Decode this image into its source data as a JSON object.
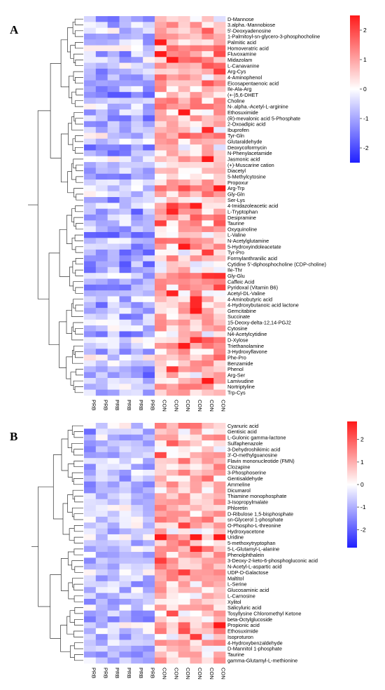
{
  "colors": {
    "low": "#2020ff",
    "mid": "#ffffff",
    "high": "#ff1a1a"
  },
  "chart_data": [
    {
      "type": "heatmap",
      "panel": "A",
      "columns": [
        "PRB",
        "PRB",
        "PRB",
        "PRB",
        "PRB",
        "PRB",
        "CON",
        "CON",
        "CON",
        "CON",
        "CON",
        "CON"
      ],
      "rows": [
        "D-Mannose",
        "3.alpha.-Mannobiose",
        "5'-Deoxyadenosine",
        "1-Palmitoyl-sn-glycero-3-phosphocholine",
        "Palmitic acid",
        "Homoveratric acid",
        "Fluvoxamine",
        "Midazolam",
        "L-Canavanine",
        "Arg-Cys",
        "4-Aminophenol",
        "Eicosapentaenoic acid",
        "Ile-Ala-Arg",
        "(+-)5,6-DHET",
        "Choline",
        "N-.alpha.-Acetyl-L-arginine",
        "Ethosuximide",
        "(R)-mevalonic acid 5-Phosphate",
        "2-Oxoadipic acid",
        "Ibuprofen",
        "Tyr-Gln",
        "Glutaraldehyde",
        "Deoxycoformycin",
        "N-Phenylacetamide",
        "Jasmonic acid",
        "(+)-Muscarine cation",
        "Diacetyl",
        "5-Methylcytosine",
        "Propoxur",
        "Arg-Trp",
        "Gly-Gln",
        "Ser-Lys",
        "4-Imidazoleacetic acid",
        "L-Tryptophan",
        "Desipramine",
        "Taurine",
        "Oxyquinoline",
        "L-Valine",
        "N-Acetylglutamine",
        "5-Hydroxyindoleacetate",
        "Tyr-Pro",
        "Formylanthranilic acid",
        "Cytidine 5'-diphosphocholine (CDP-choline)",
        "Ile-Thr",
        "Gly-Glu",
        "Caffeic Acid",
        "Pyridoxal (Vitamin B6)",
        "Acetyl-DL-Valine",
        "4-Aminobutyric acid",
        "4-Hydroxybutanoic acid lactone",
        "Gemcitabine",
        "Succinate",
        "15-Deoxy-delta-12,14-PGJ2",
        "Cytosine",
        "N4-Acetylcytidine",
        "D-Xylose",
        "Triethanolamine",
        "3-Hydroxyflavone",
        "Phe-Pro",
        "Benzamide",
        "Phenol",
        "Arg-Ser",
        "Lamivudine",
        "Nortriptyline",
        "Trp-Cys"
      ],
      "colorbar_ticks": [
        2,
        1,
        0,
        -1,
        -2
      ],
      "value_range": [
        -2.5,
        2.5
      ]
    },
    {
      "type": "heatmap",
      "panel": "B",
      "columns": [
        "PRB",
        "PRB",
        "PRB",
        "PRB",
        "PRB",
        "PRB",
        "CON",
        "CON",
        "CON",
        "CON",
        "CON",
        "CON"
      ],
      "rows": [
        "Cyanuric acid",
        "Gentisic acid",
        "L-Gulonic gamma-lactone",
        "Sulfaphenazole",
        "3-Dehydroshikimic acid",
        "3'-O-methylguanosine",
        "Flavin mononucleotide (FMN)",
        "Clozapine",
        "3-Phosphoserine",
        "Gentisaldehyde",
        "Ammeline",
        "Dicumarol",
        "Thiamine monophosphate",
        "3-Isopropylmalate",
        "Phloretin",
        "D-Ribulose 1,5-bisphosphate",
        "sn-Glycerol 1-phosphate",
        "O-Phospho-L-threonine",
        "Hydroxyacetone",
        "Uridine",
        "5-methoxytryptophan",
        "5-L-Glutamyl-L-alanine",
        "Phenolphthalein",
        "3-Deoxy-2-keto-6-phosphogluconic acid",
        "N-Acetyl-L-aspartic acid",
        "UDP-D-Galactose",
        "Maltitol",
        "L-Serine",
        "Glucosaminic acid",
        "L-Carnosine",
        "Xylitol",
        "Salicyluric acid",
        "Tosyllysine Chloromethyl Ketone",
        "beta-Octylglucoside",
        "Propionic acid",
        "Ethosuximide",
        "Isoproturon",
        "4-Hydroxybenzaldehyde",
        "D-Mannitol 1-phosphate",
        "Taurine",
        "gamma-Glutamyl-L-methionine"
      ],
      "colorbar_ticks": [
        2,
        1,
        0,
        -1,
        -2
      ],
      "value_range": [
        -2.8,
        2.8
      ]
    }
  ]
}
